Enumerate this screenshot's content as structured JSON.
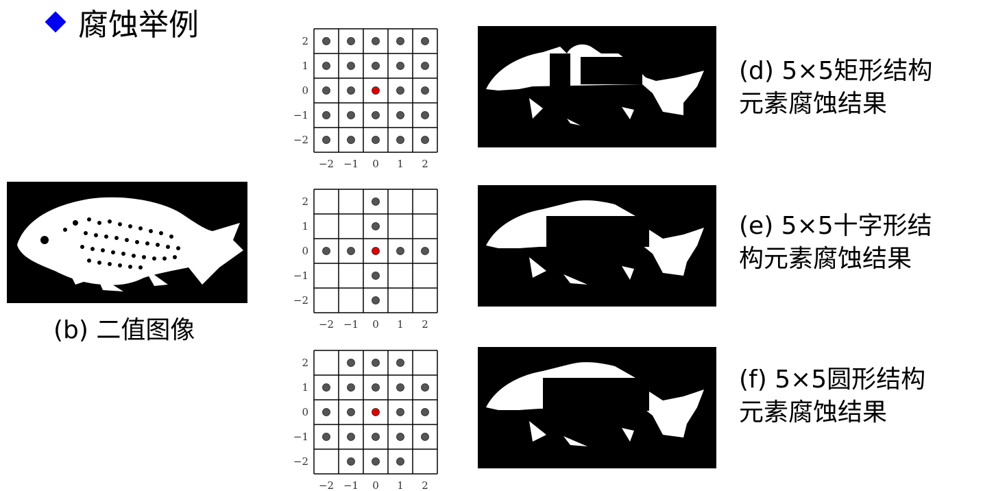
{
  "slide_title": "腐蚀举例",
  "binary_caption": "(b) 二值图像",
  "results": [
    {
      "caption_line1": "(d) 5×5矩形结构",
      "caption_line2": "元素腐蚀结果"
    },
    {
      "caption_line1": "(e) 5×5十字形结",
      "caption_line2": "构元素腐蚀结果"
    },
    {
      "caption_line1": "(f) 5×5圆形结构",
      "caption_line2": "元素腐蚀结果"
    }
  ],
  "structuring_elements": [
    {
      "name": "rectangle",
      "pattern": [
        "11111",
        "11111",
        "11111",
        "11111",
        "11111"
      ]
    },
    {
      "name": "cross",
      "pattern": [
        "00100",
        "00100",
        "11111",
        "00100",
        "00100"
      ]
    },
    {
      "name": "disk",
      "pattern": [
        "01110",
        "11111",
        "11111",
        "11111",
        "01110"
      ]
    }
  ],
  "tick_labels": [
    "-2",
    "-1",
    "0",
    "1",
    "2"
  ],
  "y_tick_labels": [
    "2",
    "1",
    "0",
    "-1",
    "-2"
  ],
  "colors": {
    "bullet": "#0000ee",
    "dot": "#555555",
    "origin_dot": "#e00000",
    "background": "#000000",
    "fish": "#ffffff"
  }
}
